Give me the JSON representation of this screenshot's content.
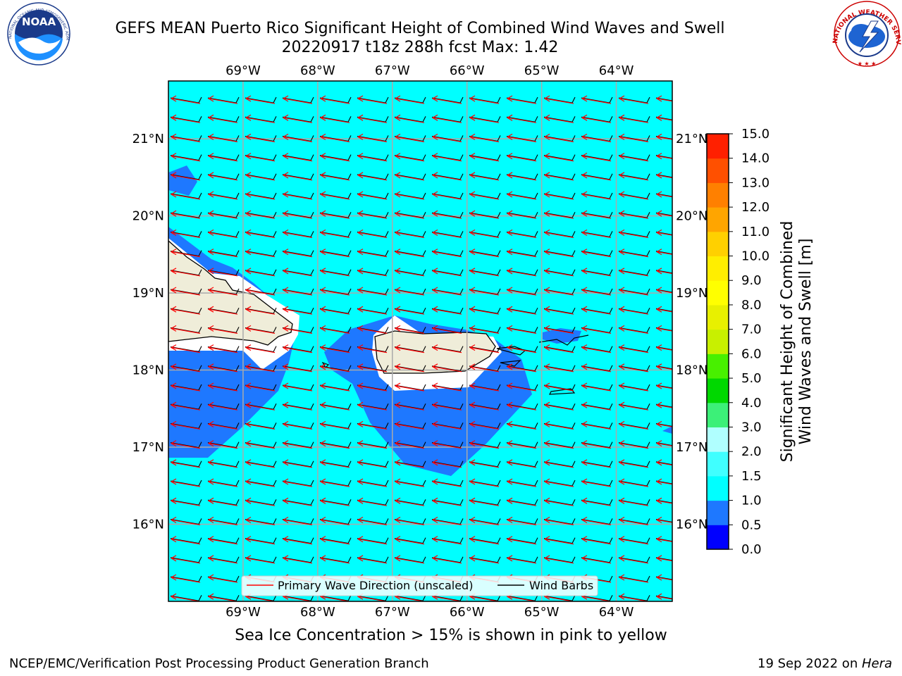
{
  "title": {
    "line1": "GEFS MEAN Puerto Rico Significant Height of Combined Wind Waves and Swell",
    "line2": "20220917 t18z 288h fcst   Max: 1.42"
  },
  "logos": {
    "left": {
      "name": "noaa-logo",
      "text": "NOAA",
      "ring_text": "NATIONAL OCEANIC AND ATMOSPHERIC ADMINISTRATION · U.S. DEPARTMENT OF COMMERCE"
    },
    "right": {
      "name": "nws-logo",
      "ring_text": "NATIONAL WEATHER SERVICE"
    }
  },
  "map": {
    "lon_labels": [
      "69°W",
      "68°W",
      "67°W",
      "66°W",
      "65°W",
      "64°W"
    ],
    "lat_labels": [
      "21°N",
      "20°N",
      "19°N",
      "18°N",
      "17°N",
      "16°N"
    ],
    "lon_values": [
      -69,
      -68,
      -67,
      -66,
      -65,
      -64
    ],
    "lat_values": [
      21,
      20,
      19,
      18,
      17,
      16
    ],
    "extent": {
      "lon_min": -70.0,
      "lon_max": -63.25,
      "lat_min": 15.0,
      "lat_max": 21.75
    },
    "ocean_color": "#00ffff",
    "land_color": "#efedd9",
    "wave_arrow_color": "#ff0000",
    "barb_color": "#000000",
    "grid_color": "#aaaaaa"
  },
  "legend": {
    "items": [
      {
        "label": "Primary Wave Direction (unscaled)",
        "color": "#ff0000"
      },
      {
        "label": "Wind Barbs",
        "color": "#000000"
      }
    ]
  },
  "colorbar": {
    "label_line1": "Significant Height of Combined",
    "label_line2": "Wind Waves and Swell [m]",
    "ticks": [
      "15.0",
      "14.0",
      "13.0",
      "12.0",
      "11.0",
      "10.0",
      "9.0",
      "8.0",
      "7.0",
      "6.0",
      "5.0",
      "4.0",
      "3.0",
      "2.0",
      "1.5",
      "1.0",
      "0.5",
      "0.0"
    ],
    "colors": [
      "#0000ff",
      "#1e78ff",
      "#00ffff",
      "#40ffff",
      "#b0ffff",
      "#3cf078",
      "#00d800",
      "#48f000",
      "#c8f000",
      "#e8f000",
      "#ffff00",
      "#ffee00",
      "#ffd000",
      "#ffa500",
      "#ff8000",
      "#ff5000",
      "#ff2000"
    ]
  },
  "subtitle": "Sea Ice Concentration > 15% is shown in pink to yellow",
  "footer": {
    "left": "NCEP/EMC/Verification Post Processing Product Generation Branch",
    "right_prefix": "19 Sep 2022 on ",
    "right_machine": "Hera"
  },
  "chart_data": {
    "type": "heatmap",
    "variable": "Significant Height of Combined Wind Waves and Swell",
    "units": "m",
    "max_value": 1.42,
    "levels": [
      0.0,
      0.5,
      1.0,
      1.5,
      2.0,
      3.0,
      4.0,
      5.0,
      6.0,
      7.0,
      8.0,
      9.0,
      10.0,
      11.0,
      12.0,
      13.0,
      14.0,
      15.0
    ],
    "dominant_range": [
      1.0,
      1.5
    ],
    "lower_range_areas": [
      0.5,
      1.0
    ]
  }
}
